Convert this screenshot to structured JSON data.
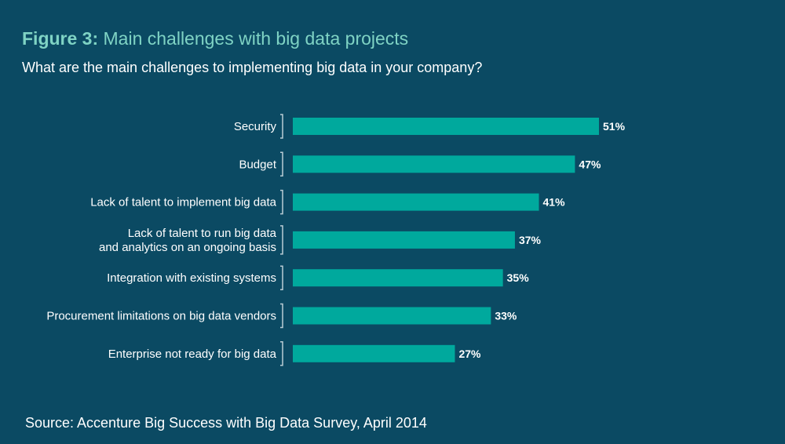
{
  "header": {
    "figure_label": "Figure 3:",
    "figure_title": "Main challenges with big data projects",
    "subtitle": "What are the main challenges to implementing big data in your company?"
  },
  "footer": {
    "source": "Source: Accenture Big Success with Big Data Survey, April 2014"
  },
  "colors": {
    "background": "#0b4a63",
    "bar": "#00a99d",
    "title_accent": "#7fd3c4",
    "text": "#ffffff",
    "bracket": "#b9ccd4"
  },
  "chart_data": {
    "type": "bar",
    "orientation": "horizontal",
    "title": "Main challenges with big data projects",
    "xlabel": "",
    "ylabel": "",
    "xlim": [
      0,
      51
    ],
    "value_suffix": "%",
    "grid": false,
    "legend": "none",
    "categories": [
      [
        "Security"
      ],
      [
        "Budget"
      ],
      [
        "Lack of talent to implement big data"
      ],
      [
        "Lack of talent to run big data",
        "and analytics on an ongoing basis"
      ],
      [
        "Integration with existing systems"
      ],
      [
        "Procurement limitations on big data vendors"
      ],
      [
        "Enterprise not ready for big data"
      ]
    ],
    "values": [
      51,
      47,
      41,
      37,
      35,
      33,
      27
    ],
    "value_labels": [
      "51%",
      "47%",
      "41%",
      "37%",
      "35%",
      "33%",
      "27%"
    ]
  }
}
